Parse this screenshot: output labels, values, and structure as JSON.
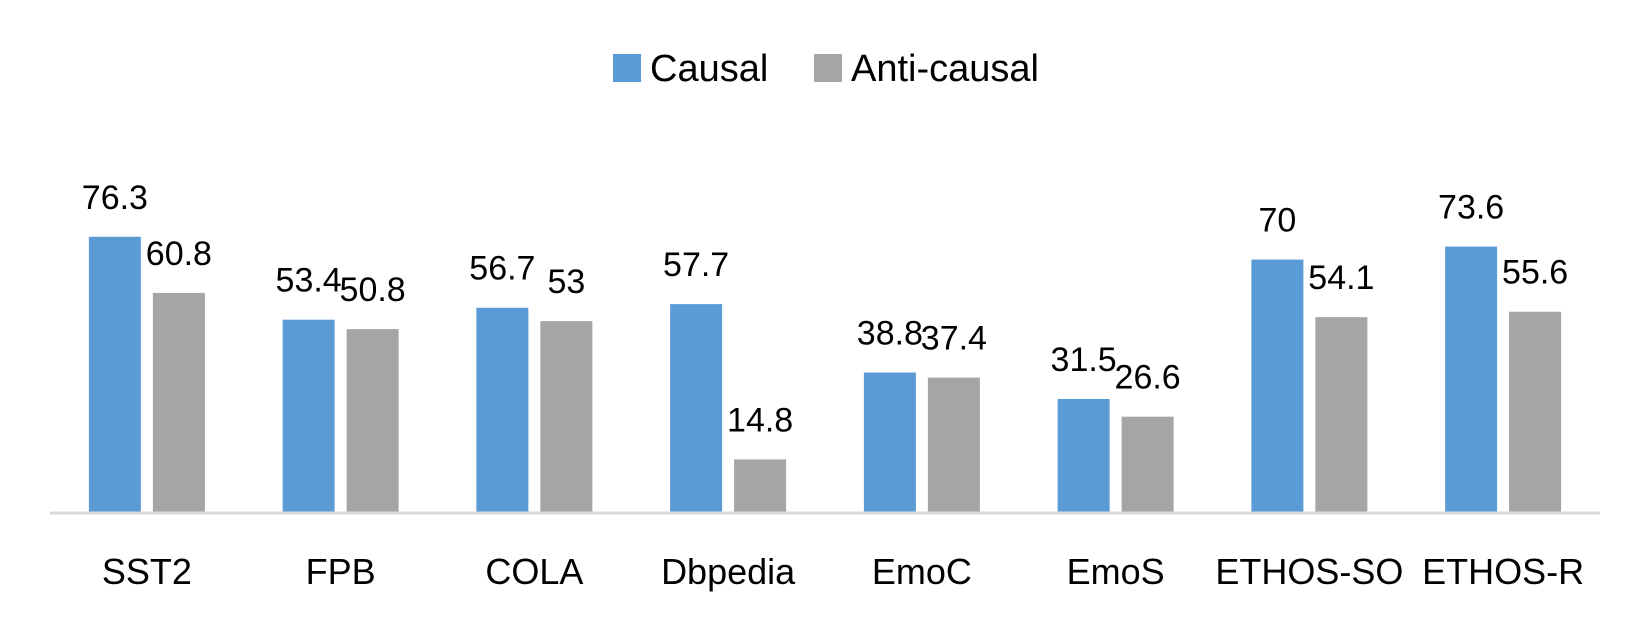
{
  "chart_data": {
    "type": "bar",
    "title": "",
    "xlabel": "",
    "ylabel": "",
    "ylim": [
      0,
      80
    ],
    "grid": false,
    "legend_position": "top",
    "categories": [
      "SST2",
      "FPB",
      "COLA",
      "Dbpedia",
      "EmoC",
      "EmoS",
      "ETHOS-SO",
      "ETHOS-R"
    ],
    "series": [
      {
        "name": "Causal",
        "color": "#5B9BD5",
        "values": [
          76.3,
          53.4,
          56.7,
          57.7,
          38.8,
          31.5,
          70,
          73.6
        ],
        "labels": [
          "76.3",
          "53.4",
          "56.7",
          "57.7",
          "38.8",
          "31.5",
          "70",
          "73.6"
        ]
      },
      {
        "name": "Anti-causal",
        "color": "#A5A5A5",
        "values": [
          60.8,
          50.8,
          53,
          14.8,
          37.4,
          26.6,
          54.1,
          55.6
        ],
        "labels": [
          "60.8",
          "50.8",
          "53",
          "14.8",
          "37.4",
          "26.6",
          "54.1",
          "55.6"
        ]
      }
    ],
    "axis_color": "#D9D9D9"
  }
}
